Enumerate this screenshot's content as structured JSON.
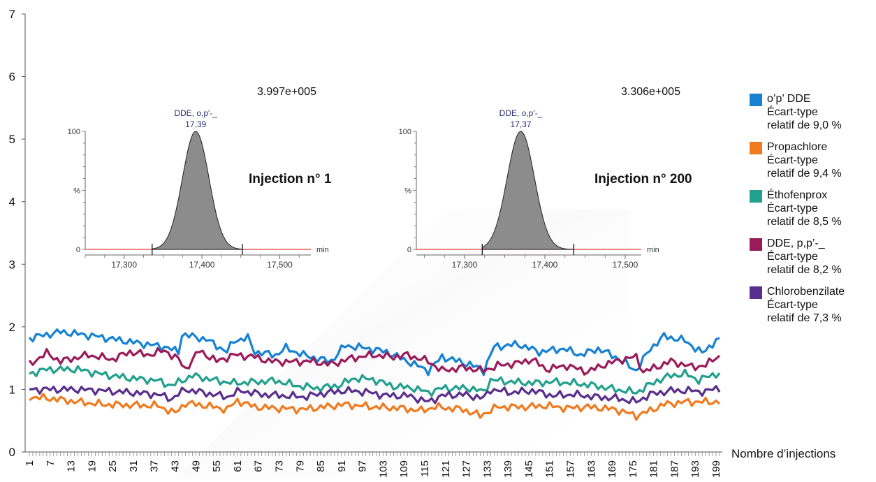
{
  "chart_data": [
    {
      "type": "line",
      "xlabel": "Nombre d’injections",
      "ylabel": "",
      "ylim": [
        0,
        7
      ],
      "yticks": [
        "0",
        "1",
        "2",
        "3",
        "4",
        "5",
        "6",
        "7"
      ],
      "xtick_labels": [
        "1",
        "7",
        "13",
        "19",
        "25",
        "31",
        "37",
        "43",
        "49",
        "55",
        "61",
        "67",
        "73",
        "79",
        "85",
        "91",
        "97",
        "103",
        "109",
        "115",
        "121",
        "127",
        "133",
        "139",
        "145",
        "151",
        "157",
        "163",
        "169",
        "175",
        "181",
        "187",
        "193",
        "199"
      ],
      "x_count": 200,
      "grid": false,
      "legend_position": "right",
      "series": [
        {
          "name": "o’p’ DDE",
          "color": "#1682D2",
          "stat_label": "Écart-type",
          "rsd_label": "relatif de 9,0 %",
          "points": [
            [
              1,
              1.82
            ],
            [
              10,
              1.92
            ],
            [
              20,
              1.85
            ],
            [
              30,
              1.76
            ],
            [
              40,
              1.68
            ],
            [
              44,
              1.6
            ],
            [
              45,
              1.88
            ],
            [
              52,
              1.8
            ],
            [
              58,
              1.6
            ],
            [
              60,
              1.78
            ],
            [
              64,
              1.82
            ],
            [
              66,
              1.6
            ],
            [
              72,
              1.55
            ],
            [
              75,
              1.66
            ],
            [
              80,
              1.55
            ],
            [
              85,
              1.48
            ],
            [
              88,
              1.45
            ],
            [
              92,
              1.7
            ],
            [
              98,
              1.66
            ],
            [
              104,
              1.6
            ],
            [
              110,
              1.45
            ],
            [
              116,
              1.3
            ],
            [
              120,
              1.52
            ],
            [
              128,
              1.4
            ],
            [
              132,
              1.3
            ],
            [
              135,
              1.68
            ],
            [
              142,
              1.72
            ],
            [
              148,
              1.6
            ],
            [
              155,
              1.65
            ],
            [
              160,
              1.55
            ],
            [
              165,
              1.65
            ],
            [
              170,
              1.52
            ],
            [
              176,
              1.3
            ],
            [
              180,
              1.65
            ],
            [
              184,
              1.85
            ],
            [
              190,
              1.78
            ],
            [
              195,
              1.58
            ],
            [
              199,
              1.78
            ]
          ]
        },
        {
          "name": "Propachlore",
          "color": "#F07A1E",
          "stat_label": "Écart-type",
          "rsd_label": "relatif de 9,4 %",
          "points": [
            [
              1,
              0.88
            ],
            [
              8,
              0.85
            ],
            [
              15,
              0.8
            ],
            [
              22,
              0.76
            ],
            [
              30,
              0.75
            ],
            [
              38,
              0.74
            ],
            [
              43,
              0.62
            ],
            [
              46,
              0.78
            ],
            [
              52,
              0.74
            ],
            [
              58,
              0.68
            ],
            [
              61,
              0.82
            ],
            [
              66,
              0.72
            ],
            [
              72,
              0.7
            ],
            [
              80,
              0.68
            ],
            [
              86,
              0.72
            ],
            [
              92,
              0.76
            ],
            [
              100,
              0.72
            ],
            [
              108,
              0.7
            ],
            [
              114,
              0.66
            ],
            [
              118,
              0.72
            ],
            [
              126,
              0.68
            ],
            [
              131,
              0.58
            ],
            [
              136,
              0.72
            ],
            [
              144,
              0.72
            ],
            [
              150,
              0.74
            ],
            [
              156,
              0.7
            ],
            [
              162,
              0.72
            ],
            [
              170,
              0.68
            ],
            [
              176,
              0.58
            ],
            [
              180,
              0.66
            ],
            [
              184,
              0.76
            ],
            [
              190,
              0.8
            ],
            [
              196,
              0.8
            ],
            [
              199,
              0.8
            ]
          ]
        },
        {
          "name": "Éthofenprox",
          "color": "#22A08E",
          "stat_label": "Écart-type",
          "rsd_label": "relatif de 8,5 %",
          "points": [
            [
              1,
              1.25
            ],
            [
              6,
              1.32
            ],
            [
              15,
              1.32
            ],
            [
              22,
              1.24
            ],
            [
              30,
              1.18
            ],
            [
              38,
              1.14
            ],
            [
              42,
              1.06
            ],
            [
              48,
              1.22
            ],
            [
              55,
              1.14
            ],
            [
              60,
              1.1
            ],
            [
              66,
              1.12
            ],
            [
              72,
              1.14
            ],
            [
              78,
              1.06
            ],
            [
              84,
              1.02
            ],
            [
              90,
              1.06
            ],
            [
              95,
              1.18
            ],
            [
              100,
              1.16
            ],
            [
              106,
              1.05
            ],
            [
              112,
              1.02
            ],
            [
              116,
              0.95
            ],
            [
              120,
              1.02
            ],
            [
              128,
              1.02
            ],
            [
              132,
              0.96
            ],
            [
              134,
              1.15
            ],
            [
              140,
              1.12
            ],
            [
              146,
              1.1
            ],
            [
              152,
              1.12
            ],
            [
              158,
              1.1
            ],
            [
              164,
              1.06
            ],
            [
              170,
              1.0
            ],
            [
              176,
              0.95
            ],
            [
              182,
              1.14
            ],
            [
              186,
              1.22
            ],
            [
              190,
              1.25
            ],
            [
              194,
              1.15
            ],
            [
              199,
              1.25
            ]
          ]
        },
        {
          "name": "DDE, p,p’-_",
          "color": "#9B1B5A",
          "stat_label": "Écart-type",
          "rsd_label": "relatif de 8,2 %",
          "points": [
            [
              1,
              1.4
            ],
            [
              6,
              1.58
            ],
            [
              10,
              1.45
            ],
            [
              18,
              1.55
            ],
            [
              25,
              1.48
            ],
            [
              30,
              1.6
            ],
            [
              35,
              1.55
            ],
            [
              40,
              1.62
            ],
            [
              44,
              1.48
            ],
            [
              46,
              1.32
            ],
            [
              50,
              1.62
            ],
            [
              55,
              1.45
            ],
            [
              60,
              1.55
            ],
            [
              66,
              1.52
            ],
            [
              70,
              1.45
            ],
            [
              76,
              1.44
            ],
            [
              82,
              1.45
            ],
            [
              88,
              1.4
            ],
            [
              94,
              1.5
            ],
            [
              100,
              1.55
            ],
            [
              106,
              1.52
            ],
            [
              110,
              1.55
            ],
            [
              116,
              1.45
            ],
            [
              120,
              1.3
            ],
            [
              126,
              1.35
            ],
            [
              132,
              1.3
            ],
            [
              136,
              1.38
            ],
            [
              142,
              1.42
            ],
            [
              146,
              1.48
            ],
            [
              150,
              1.32
            ],
            [
              156,
              1.38
            ],
            [
              162,
              1.28
            ],
            [
              166,
              1.38
            ],
            [
              172,
              1.48
            ],
            [
              176,
              1.52
            ],
            [
              178,
              1.28
            ],
            [
              182,
              1.36
            ],
            [
              186,
              1.45
            ],
            [
              192,
              1.36
            ],
            [
              196,
              1.38
            ],
            [
              199,
              1.52
            ]
          ]
        },
        {
          "name": "Chlorobenzilate",
          "color": "#5A2E8C",
          "stat_label": "Écart-type",
          "rsd_label": "relatif de 7,3 %",
          "points": [
            [
              1,
              1.0
            ],
            [
              8,
              1.0
            ],
            [
              15,
              1.0
            ],
            [
              22,
              0.98
            ],
            [
              30,
              0.95
            ],
            [
              38,
              0.92
            ],
            [
              42,
              0.85
            ],
            [
              46,
              1.0
            ],
            [
              52,
              0.94
            ],
            [
              58,
              0.88
            ],
            [
              62,
              0.98
            ],
            [
              68,
              0.92
            ],
            [
              74,
              0.9
            ],
            [
              80,
              0.88
            ],
            [
              86,
              0.94
            ],
            [
              92,
              0.98
            ],
            [
              98,
              0.96
            ],
            [
              104,
              0.9
            ],
            [
              110,
              0.9
            ],
            [
              116,
              0.8
            ],
            [
              120,
              0.9
            ],
            [
              126,
              0.92
            ],
            [
              132,
              0.86
            ],
            [
              134,
              1.0
            ],
            [
              140,
              0.95
            ],
            [
              146,
              0.98
            ],
            [
              152,
              0.9
            ],
            [
              158,
              0.92
            ],
            [
              164,
              0.88
            ],
            [
              170,
              0.86
            ],
            [
              176,
              0.8
            ],
            [
              180,
              0.92
            ],
            [
              186,
              0.98
            ],
            [
              192,
              0.98
            ],
            [
              196,
              0.96
            ],
            [
              199,
              1.02
            ]
          ]
        }
      ]
    },
    {
      "type": "area",
      "panel": "injection-1",
      "intensity_label": "3.997e+005",
      "peak_label_line1": "DDE, o,p'-_",
      "peak_label_line2": "17,39",
      "panel_title": "Injection n° 1",
      "y_tick_labels": [
        "100",
        "%",
        "0"
      ],
      "x_tick_labels": [
        "17,300",
        "17,400",
        "17,500"
      ],
      "x_tick_values": [
        17.3,
        17.4,
        17.5
      ],
      "xlabel": "min",
      "xlim": [
        17.25,
        17.54
      ],
      "peak_x": 17.392,
      "peak_y": 100,
      "integration_bounds": [
        17.336,
        17.452
      ],
      "baseline_color": "#E23B3B",
      "fill_color": "#8C8C8C"
    },
    {
      "type": "area",
      "panel": "injection-200",
      "intensity_label": "3.306e+005",
      "peak_label_line1": "DDE, o,p'-_",
      "peak_label_line2": "17,37",
      "panel_title": "Injection n° 200",
      "y_tick_labels": [
        "100",
        "%",
        "0"
      ],
      "x_tick_labels": [
        "17,300",
        "17,400",
        "17,500"
      ],
      "x_tick_values": [
        17.3,
        17.4,
        17.5
      ],
      "xlabel": "min",
      "xlim": [
        17.24,
        17.52
      ],
      "peak_x": 17.37,
      "peak_y": 100,
      "integration_bounds": [
        17.322,
        17.436
      ],
      "baseline_color": "#E23B3B",
      "fill_color": "#8C8C8C"
    }
  ]
}
